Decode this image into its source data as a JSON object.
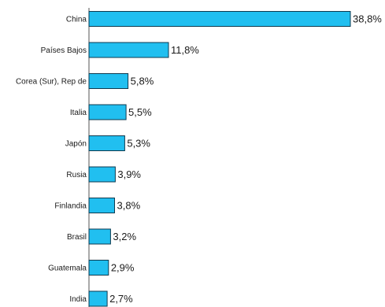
{
  "chart_data": {
    "type": "bar",
    "orientation": "horizontal",
    "categories": [
      "China",
      "Países Bajos",
      "Corea (Sur), Rep de",
      "Italia",
      "Japón",
      "Rusia",
      "Finlandia",
      "Brasil",
      "Guatemala",
      "India"
    ],
    "values": [
      38.8,
      11.8,
      5.8,
      5.5,
      5.3,
      3.9,
      3.8,
      3.2,
      2.9,
      2.7
    ],
    "value_labels": [
      "38,8%",
      "11,8%",
      "5,8%",
      "5,5%",
      "5,3%",
      "3,9%",
      "3,8%",
      "3,2%",
      "2,9%",
      "2,7%"
    ],
    "title": "",
    "xlabel": "",
    "ylabel": "",
    "xlim": [
      0,
      38.8
    ],
    "grid": false,
    "legend": "none",
    "colors": {
      "bar": "#21bff0",
      "bar_outline": "#0e3a4f"
    }
  }
}
